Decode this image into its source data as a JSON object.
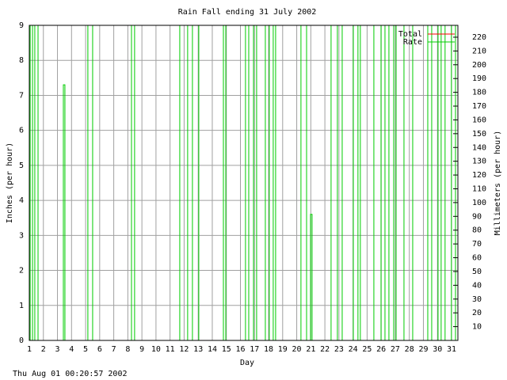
{
  "chart_data": {
    "type": "line",
    "title": "Rain Fall ending 31 July 2002",
    "xlabel": "Day",
    "ylabel": "Inches (per hour)",
    "y2label": "Millimeters (per hour)",
    "footer": "Thu Aug 01 00:20:57 2002",
    "xlim": [
      1,
      31.45
    ],
    "xticks": [
      1,
      2,
      3,
      4,
      5,
      6,
      7,
      8,
      9,
      10,
      11,
      12,
      13,
      14,
      15,
      16,
      17,
      18,
      19,
      20,
      21,
      22,
      23,
      24,
      25,
      26,
      27,
      28,
      29,
      30,
      31
    ],
    "ylim": [
      0,
      9
    ],
    "yticks": [
      0,
      1,
      2,
      3,
      4,
      5,
      6,
      7,
      8,
      9
    ],
    "y2lim": [
      0,
      228.6
    ],
    "y2ticks": [
      10,
      20,
      30,
      40,
      50,
      60,
      70,
      80,
      90,
      100,
      110,
      120,
      130,
      140,
      150,
      160,
      170,
      180,
      190,
      200,
      210,
      220
    ],
    "grid": true,
    "legend": "top-right",
    "series": [
      {
        "name": "Total",
        "color": "#ff0000",
        "x": [],
        "values": []
      },
      {
        "name": "Rate",
        "color": "#00cc00",
        "x": [
          1,
          1.06,
          1.06,
          1.23,
          1.23,
          1.39,
          1.39,
          1.62,
          1.62,
          3.42,
          3.42,
          3.53,
          3.53,
          5.16,
          5.16,
          5.5,
          5.5,
          8.26,
          8.26,
          8.48,
          8.48,
          11.69,
          11.69,
          12.25,
          12.25,
          12.59,
          12.59,
          13.04,
          13.04,
          14.79,
          14.79,
          14.96,
          14.96,
          16.36,
          16.36,
          16.59,
          16.59,
          16.93,
          16.93,
          17.15,
          17.15,
          17.77,
          17.77,
          18.05,
          18.05,
          18.33,
          18.33,
          18.5,
          18.5,
          20.3,
          20.3,
          20.7,
          20.7,
          20.98,
          20.98,
          21.09,
          21.09,
          22.44,
          22.44,
          22.89,
          22.89,
          23.23,
          23.23,
          24.02,
          24.02,
          24.35,
          24.35,
          24.52,
          24.52,
          25.48,
          25.48,
          25.99,
          25.99,
          26.27,
          26.27,
          26.55,
          26.55,
          26.89,
          26.89,
          27.06,
          27.06,
          27.62,
          27.62,
          28.24,
          28.24,
          29.31,
          29.31,
          29.59,
          29.59,
          30.04,
          30.04,
          30.26,
          30.26,
          30.54,
          30.54,
          30.99,
          30.99,
          31.28,
          31.28,
          31.45,
          31.45
        ],
        "values": [
          0,
          0,
          9,
          9,
          0,
          0,
          9,
          9,
          0,
          0,
          7.3,
          7.3,
          0,
          0,
          9,
          9,
          0,
          0,
          9,
          9,
          0,
          0,
          9,
          9,
          0,
          0,
          9,
          9,
          0,
          0,
          9,
          9,
          0,
          0,
          9,
          9,
          0,
          0,
          9,
          9,
          0,
          0,
          9,
          9,
          0,
          0,
          9,
          9,
          0,
          0,
          9,
          9,
          0,
          0,
          3.6,
          3.6,
          0,
          0,
          9,
          9,
          0,
          0,
          9,
          9,
          0,
          0,
          9,
          9,
          0,
          0,
          9,
          9,
          0,
          0,
          9,
          9,
          0,
          0,
          9,
          9,
          0,
          0,
          9,
          9,
          0,
          0,
          9,
          9,
          0,
          0,
          9,
          9,
          0,
          0,
          9,
          9,
          0,
          0,
          9,
          9,
          0
        ]
      }
    ]
  }
}
